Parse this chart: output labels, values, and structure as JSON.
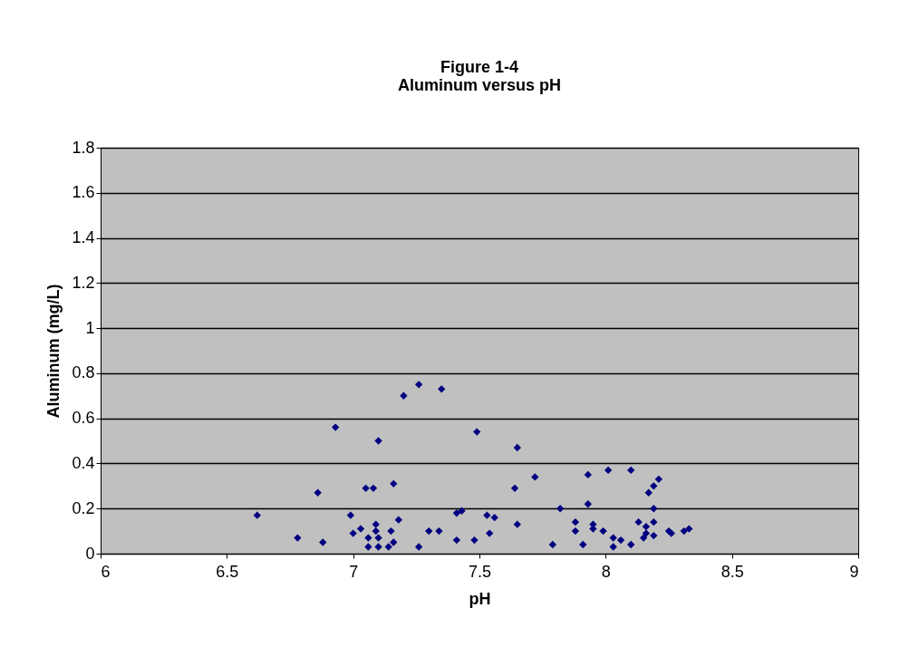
{
  "chart_data": {
    "type": "scatter",
    "title": [
      "Figure 1-4",
      "Aluminum versus pH"
    ],
    "xlabel": "pH",
    "ylabel": "Aluminum (mg/L)",
    "xlim": [
      6,
      9
    ],
    "xticks": [
      6,
      6.5,
      7,
      7.5,
      8,
      8.5,
      9
    ],
    "ylim": [
      0,
      1.8
    ],
    "yticks": [
      0,
      0.2,
      0.4,
      0.6,
      0.8,
      1,
      1.2,
      1.4,
      1.6,
      1.8
    ],
    "grid": "y",
    "marker": "diamond",
    "series": [
      {
        "color": "#000080",
        "x": [
          6.62,
          6.78,
          6.86,
          6.88,
          6.93,
          6.99,
          7.0,
          7.03,
          7.05,
          7.08,
          7.1,
          7.09,
          7.06,
          7.09,
          7.1,
          7.06,
          7.1,
          7.14,
          7.15,
          7.16,
          7.16,
          7.18,
          7.2,
          7.26,
          7.35,
          7.26,
          7.3,
          7.34,
          7.41,
          7.43,
          7.41,
          7.49,
          7.48,
          7.53,
          7.56,
          7.54,
          7.65,
          7.64,
          7.65,
          7.72,
          7.79,
          7.82,
          7.88,
          7.88,
          7.91,
          7.93,
          7.93,
          7.95,
          7.95,
          7.99,
          8.01,
          8.1,
          8.03,
          8.03,
          8.06,
          8.1,
          8.13,
          8.15,
          8.16,
          8.16,
          8.19,
          8.19,
          8.19,
          8.17,
          8.19,
          8.21,
          8.25,
          8.26,
          8.31,
          8.33
        ],
        "values": [
          0.17,
          0.07,
          0.27,
          0.05,
          0.56,
          0.17,
          0.09,
          0.11,
          0.29,
          0.29,
          0.5,
          0.13,
          0.07,
          0.1,
          0.07,
          0.03,
          0.03,
          0.03,
          0.1,
          0.31,
          0.05,
          0.15,
          0.7,
          0.75,
          0.73,
          0.03,
          0.1,
          0.1,
          0.18,
          0.19,
          0.06,
          0.54,
          0.06,
          0.17,
          0.16,
          0.09,
          0.47,
          0.29,
          0.13,
          0.34,
          0.04,
          0.2,
          0.14,
          0.1,
          0.04,
          0.35,
          0.22,
          0.13,
          0.11,
          0.1,
          0.37,
          0.37,
          0.07,
          0.03,
          0.06,
          0.04,
          0.14,
          0.07,
          0.09,
          0.12,
          0.14,
          0.08,
          0.2,
          0.27,
          0.3,
          0.33,
          0.1,
          0.09,
          0.1,
          0.11
        ]
      }
    ]
  }
}
